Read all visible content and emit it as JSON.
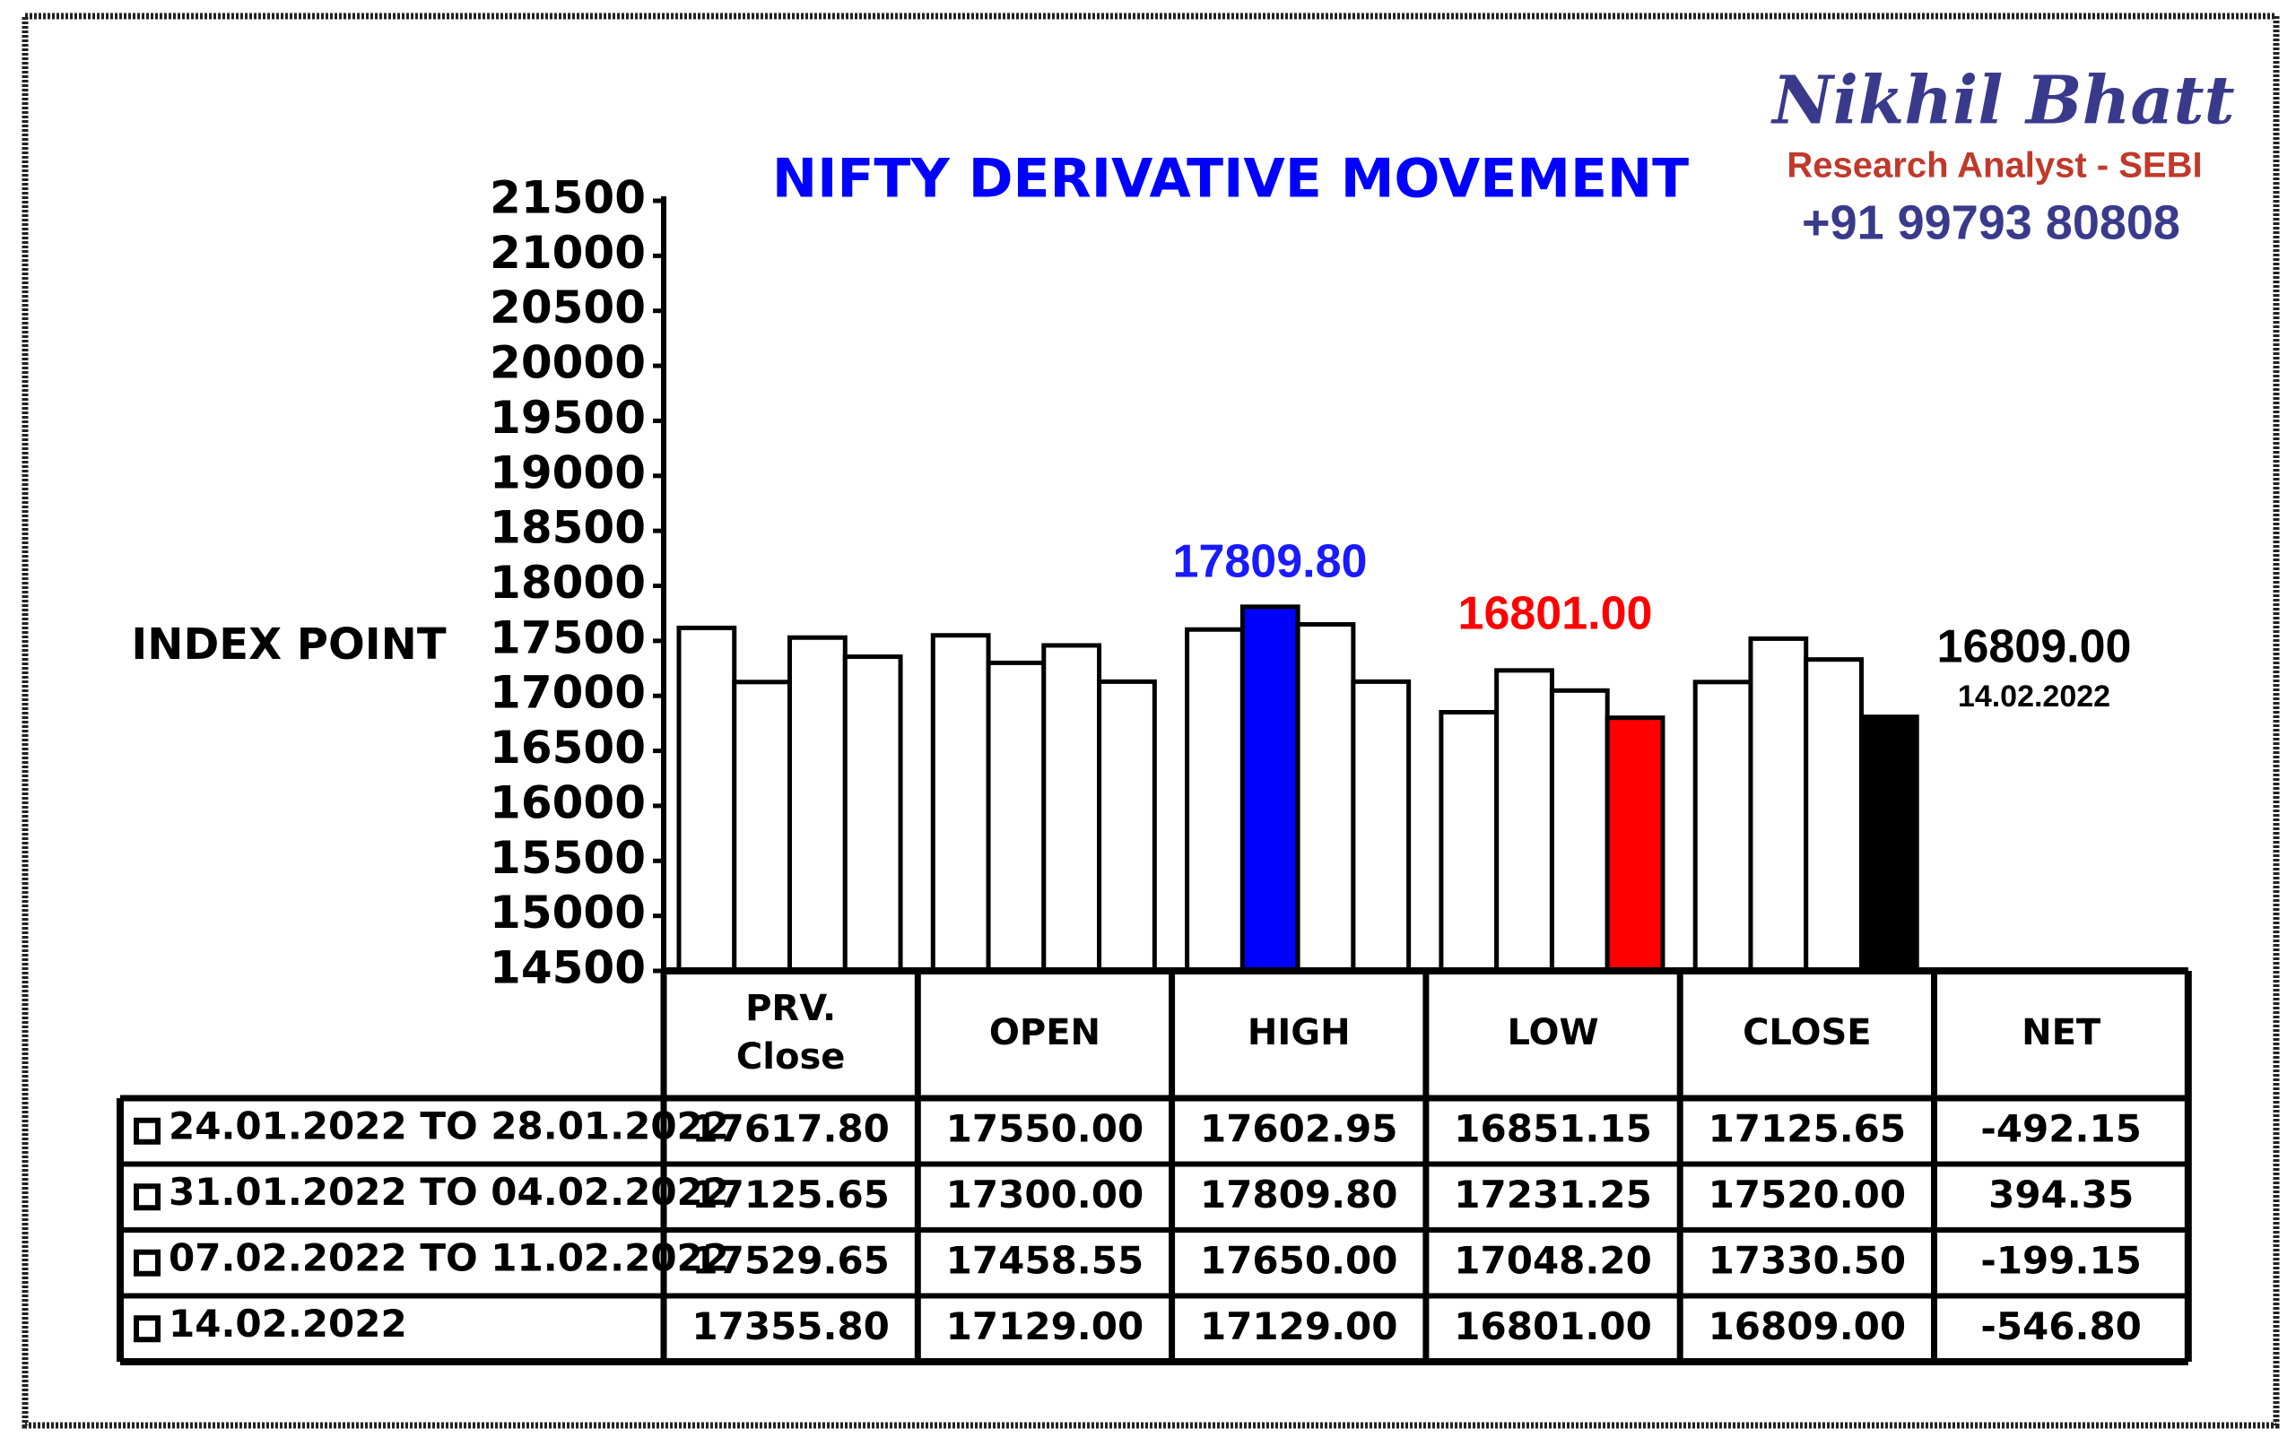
{
  "chart_data": {
    "type": "bar",
    "title": "NIFTY DERIVATIVE MOVEMENT",
    "y_label": "INDEX POINT",
    "brand": {
      "name": "Nikhil Bhatt",
      "role": "Research Analyst - SEBI",
      "phone": "+91 99793 80808"
    },
    "categories": [
      "PRV. Close",
      "OPEN",
      "HIGH",
      "LOW",
      "CLOSE"
    ],
    "series": [
      {
        "name": "24.01.2022 TO 28.01.2022",
        "color": "#ffffff",
        "colors": [
          "#ffffff",
          "#ffffff",
          "#ffffff",
          "#ffffff",
          "#ffffff"
        ],
        "values": [
          17617.8,
          17550,
          17602.95,
          16851.15,
          17125.65
        ],
        "value_labels": [
          "17617.80",
          "17550.00",
          "17602.95",
          "16851.15",
          "17125.65"
        ]
      },
      {
        "name": "31.01.2022 TO 04.02.2022",
        "color": "#ffffff",
        "colors": [
          "#ffffff",
          "#ffffff",
          "#0000ff",
          "#ffffff",
          "#ffffff"
        ],
        "values": [
          17125.65,
          17300,
          17809.8,
          17231.25,
          17520
        ],
        "value_labels": [
          "17125.65",
          "17300.00",
          "17809.80",
          "17231.25",
          "17520.00"
        ]
      },
      {
        "name": "07.02.2022 TO 11.02.2022",
        "color": "#ffffff",
        "colors": [
          "#ffffff",
          "#ffffff",
          "#ffffff",
          "#ffffff",
          "#ffffff"
        ],
        "values": [
          17529.65,
          17458.55,
          17650,
          17048.2,
          17330.5
        ],
        "value_labels": [
          "17529.65",
          "17458.55",
          "17650.00",
          "17048.20",
          "17330.50"
        ]
      },
      {
        "name": "14.02.2022",
        "color": "#ffffff",
        "colors": [
          "#ffffff",
          "#ffffff",
          "#ffffff",
          "#ff0000",
          "#000000"
        ],
        "values": [
          17355.8,
          17129,
          17129,
          16801,
          16809
        ],
        "value_labels": [
          "17355.80",
          "17129.00",
          "17129.00",
          "16801.00",
          "16809.00"
        ]
      }
    ],
    "net": {
      "header": "NET",
      "value_labels": [
        "-492.15",
        "394.35",
        "-199.15",
        "-546.80"
      ]
    },
    "annotations": [
      {
        "text": "17809.80",
        "color": "#1a1aff"
      },
      {
        "text": "16801.00",
        "color": "#ff0000"
      },
      {
        "text": "16809.00",
        "color": "#000000"
      },
      {
        "text": "14.02.2022",
        "color": "#000000"
      }
    ],
    "ylim": [
      14500,
      21500
    ],
    "yticks": [
      14500,
      15000,
      15500,
      16000,
      16500,
      17000,
      17500,
      18000,
      18500,
      19000,
      19500,
      20000,
      20500,
      21000,
      21500
    ]
  }
}
